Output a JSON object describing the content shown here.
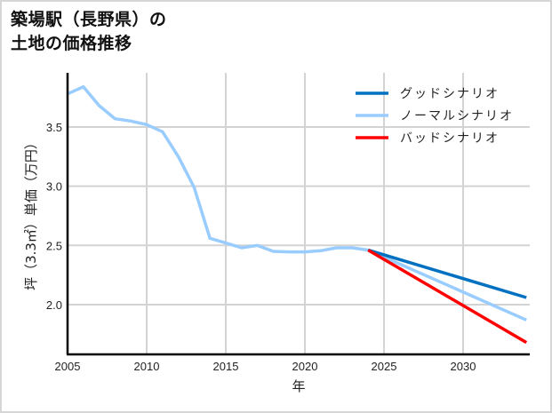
{
  "title": {
    "line1": "築場駅（長野県）の",
    "line2": "土地の価格推移"
  },
  "chart_data": {
    "type": "line",
    "title": "築場駅（長野県）の土地の価格推移",
    "xlabel": "年",
    "ylabel": "坪（3.3㎡）単価（万円）",
    "xlim": [
      2005,
      2034
    ],
    "ylim": [
      1.58,
      3.98
    ],
    "x_ticks": [
      2005,
      2010,
      2015,
      2020,
      2025,
      2030
    ],
    "y_ticks": [
      2.0,
      2.5,
      3.0,
      3.5
    ],
    "y_tick_labels": [
      "2.0",
      "2.5",
      "3.0",
      "3.5"
    ],
    "grid": true,
    "legend_position": "upper right",
    "series": [
      {
        "name": "グッドシナリオ",
        "color": "#0070c0",
        "x": [
          2024,
          2034
        ],
        "values": [
          2.46,
          2.06
        ]
      },
      {
        "name": "ノーマルシナリオ",
        "color": "#99ccff",
        "x": [
          2005,
          2006,
          2007,
          2008,
          2009,
          2010,
          2011,
          2012,
          2013,
          2014,
          2015,
          2016,
          2017,
          2018,
          2019,
          2020,
          2021,
          2022,
          2023,
          2024,
          2034
        ],
        "values": [
          3.78,
          3.84,
          3.68,
          3.57,
          3.55,
          3.52,
          3.46,
          3.25,
          2.99,
          2.56,
          2.52,
          2.48,
          2.5,
          2.45,
          2.445,
          2.445,
          2.455,
          2.48,
          2.48,
          2.46,
          1.87
        ]
      },
      {
        "name": "バッドシナリオ",
        "color": "#ff0000",
        "x": [
          2024,
          2034
        ],
        "values": [
          2.46,
          1.68
        ]
      }
    ]
  }
}
